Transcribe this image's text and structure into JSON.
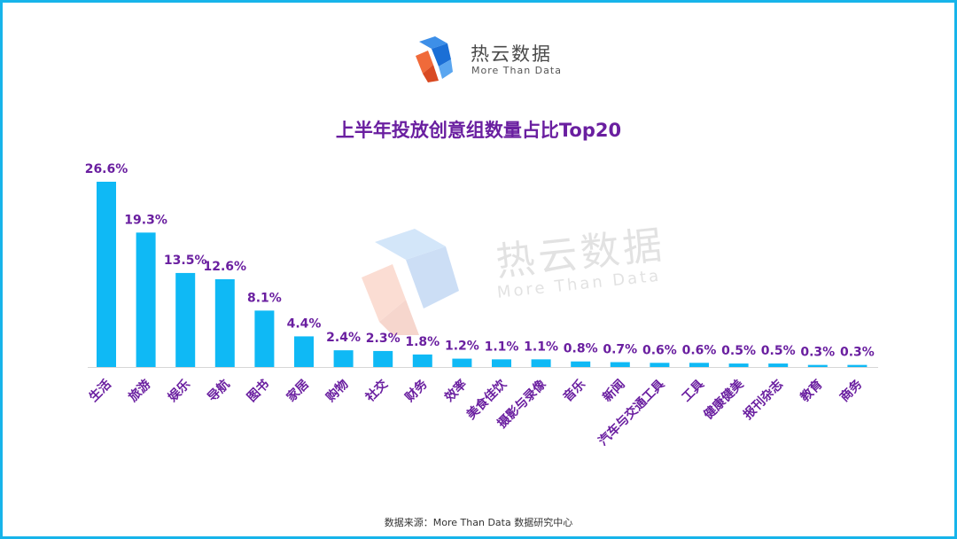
{
  "brand": {
    "name": "热云数据",
    "tagline": "More Than Data"
  },
  "watermark": {
    "name": "热云数据",
    "tagline": "More Than Data"
  },
  "footer": {
    "source": "数据来源：More Than Data 数据研究中心"
  },
  "colors": {
    "bar": "#0fb9f5",
    "label": "#6a1fa0",
    "border": "#17b4ea"
  },
  "chart_data": {
    "type": "bar",
    "title": "上半年投放创意组数量占比Top20",
    "xlabel": "",
    "ylabel": "",
    "ylim": [
      0,
      30
    ],
    "grid": false,
    "categories": [
      "生活",
      "旅游",
      "娱乐",
      "导航",
      "图书",
      "家居",
      "购物",
      "社交",
      "财务",
      "效率",
      "美食佳饮",
      "摄影与录像",
      "音乐",
      "新闻",
      "汽车与交通工具",
      "工具",
      "健康健美",
      "报刊杂志",
      "教育",
      "商务"
    ],
    "values": [
      26.6,
      19.3,
      13.5,
      12.6,
      8.1,
      4.4,
      2.4,
      2.3,
      1.8,
      1.2,
      1.1,
      1.1,
      0.8,
      0.7,
      0.6,
      0.6,
      0.5,
      0.5,
      0.3,
      0.3
    ],
    "value_labels": [
      "26.6%",
      "19.3%",
      "13.5%",
      "12.6%",
      "8.1%",
      "4.4%",
      "2.4%",
      "2.3%",
      "1.8%",
      "1.2%",
      "1.1%",
      "1.1%",
      "0.8%",
      "0.7%",
      "0.6%",
      "0.6%",
      "0.5%",
      "0.5%",
      "0.3%",
      "0.3%"
    ]
  }
}
